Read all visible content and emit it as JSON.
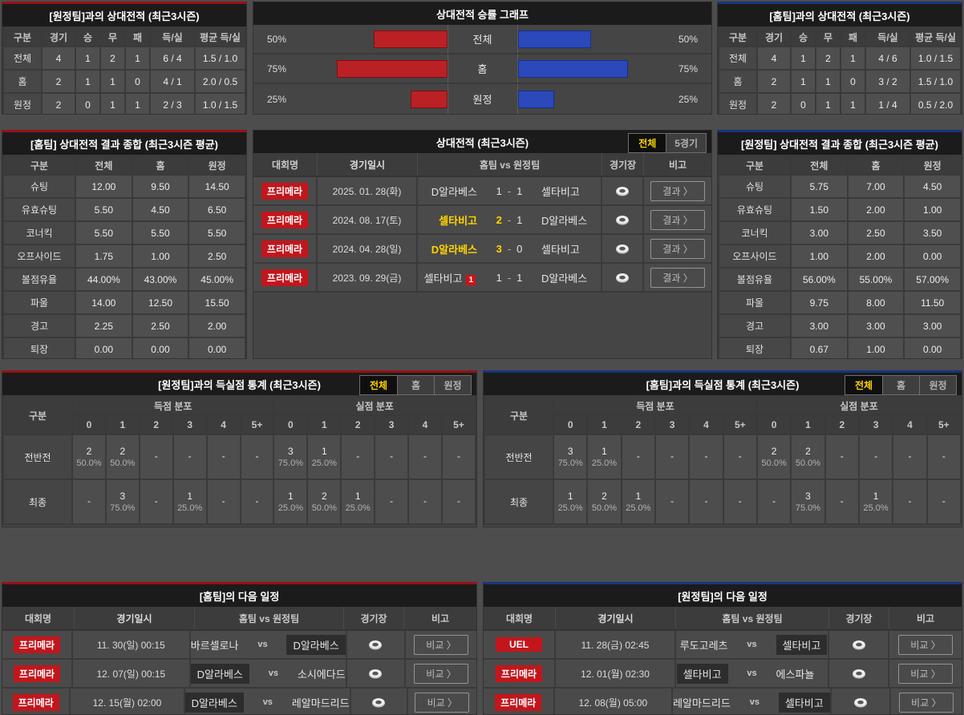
{
  "chart_data": {
    "type": "bar",
    "title": "상대전적 승률 그래프",
    "orientation": "horizontal-mirrored",
    "categories": [
      "전체",
      "홈",
      "원정"
    ],
    "series": [
      {
        "name": "red-left",
        "color": "#bb2025",
        "values": [
          50,
          75,
          25
        ]
      },
      {
        "name": "blue-right",
        "color": "#2b49bb",
        "values": [
          50,
          75,
          25
        ]
      }
    ],
    "value_labels": [
      "50%",
      "75%",
      "25%"
    ],
    "xlim": [
      0,
      100
    ]
  },
  "labels": {
    "vs": "vs",
    "score_sep": "-",
    "result_button": "결과 〉",
    "compare_button": "비교 〉"
  },
  "colors": {
    "red_accent": "#971116",
    "blue_accent": "#17357e",
    "badge_red": "#c2161c",
    "bar_red": "#bb2025",
    "bar_blue": "#2b49bb",
    "winner_yellow": "#ffd400"
  },
  "h2h_vs_away": {
    "title": "[원정팀]과의 상대전적 (최근3시즌)",
    "headers": [
      "구분",
      "경기",
      "승",
      "무",
      "패",
      "득/실",
      "평균 득/실"
    ],
    "rows": [
      [
        "전체",
        "4",
        "1",
        "2",
        "1",
        "6 / 4",
        "1.5 / 1.0"
      ],
      [
        "홈",
        "2",
        "1",
        "1",
        "0",
        "4 / 1",
        "2.0 / 0.5"
      ],
      [
        "원정",
        "2",
        "0",
        "1",
        "1",
        "2 / 3",
        "1.0 / 1.5"
      ]
    ]
  },
  "h2h_vs_home": {
    "title": "[홈팀]과의 상대전적 (최근3시즌)",
    "headers": [
      "구분",
      "경기",
      "승",
      "무",
      "패",
      "득/실",
      "평균 득/실"
    ],
    "rows": [
      [
        "전체",
        "4",
        "1",
        "2",
        "1",
        "4 / 6",
        "1.0 / 1.5"
      ],
      [
        "홈",
        "2",
        "1",
        "1",
        "0",
        "3 / 2",
        "1.5 / 1.0"
      ],
      [
        "원정",
        "2",
        "0",
        "1",
        "1",
        "1 / 4",
        "0.5 / 2.0"
      ]
    ]
  },
  "home_summary": {
    "title": "[홈팀] 상대전적 결과 종합 (최근3시즌 평균)",
    "headers": [
      "구분",
      "전체",
      "홈",
      "원정"
    ],
    "rows": [
      [
        "슈팅",
        "12.00",
        "9.50",
        "14.50"
      ],
      [
        "유효슈팅",
        "5.50",
        "4.50",
        "6.50"
      ],
      [
        "코너킥",
        "5.50",
        "5.50",
        "5.50"
      ],
      [
        "오프사이드",
        "1.75",
        "1.00",
        "2.50"
      ],
      [
        "볼점유율",
        "44.00%",
        "43.00%",
        "45.00%"
      ],
      [
        "파울",
        "14.00",
        "12.50",
        "15.50"
      ],
      [
        "경고",
        "2.25",
        "2.50",
        "2.00"
      ],
      [
        "퇴장",
        "0.00",
        "0.00",
        "0.00"
      ]
    ]
  },
  "away_summary": {
    "title": "[원정팀] 상대전적 결과 종합 (최근3시즌 평균)",
    "headers": [
      "구분",
      "전체",
      "홈",
      "원정"
    ],
    "rows": [
      [
        "슈팅",
        "5.75",
        "7.00",
        "4.50"
      ],
      [
        "유효슈팅",
        "1.50",
        "2.00",
        "1.00"
      ],
      [
        "코너킥",
        "3.00",
        "2.50",
        "3.50"
      ],
      [
        "오프사이드",
        "1.00",
        "2.00",
        "0.00"
      ],
      [
        "볼점유율",
        "56.00%",
        "55.00%",
        "57.00%"
      ],
      [
        "파울",
        "9.75",
        "8.00",
        "11.50"
      ],
      [
        "경고",
        "3.00",
        "3.00",
        "3.00"
      ],
      [
        "퇴장",
        "0.67",
        "1.00",
        "0.00"
      ]
    ]
  },
  "h2h_matches": {
    "title": "상대전적 (최근3시즌)",
    "tabs": [
      {
        "label": "전체",
        "active": true
      },
      {
        "label": "5경기",
        "active": false
      }
    ],
    "headers": {
      "league": "대회명",
      "datetime": "경기일시",
      "teams": "홈팀 vs 원정팀",
      "stadium": "경기장",
      "note": "비고"
    },
    "rows": [
      {
        "league": "프리메라",
        "date": "2025. 01. 28(화)",
        "home": "D알라베스",
        "home_score": "1",
        "away_score": "1",
        "away": "셀타비고",
        "winner": "draw"
      },
      {
        "league": "프리메라",
        "date": "2024. 08. 17(토)",
        "home": "셀타비고",
        "home_score": "2",
        "away_score": "1",
        "away": "D알라베스",
        "winner": "home"
      },
      {
        "league": "프리메라",
        "date": "2024. 04. 28(일)",
        "home": "D알라베스",
        "home_score": "3",
        "away_score": "0",
        "away": "셀타비고",
        "winner": "home"
      },
      {
        "league": "프리메라",
        "date": "2023. 09. 29(금)",
        "home": "셀타비고",
        "home_redcards": "1",
        "home_score": "1",
        "away_score": "1",
        "away": "D알라베스",
        "winner": "draw"
      }
    ]
  },
  "goals_vs_away": {
    "title": "[원정팀]과의 득실점 통계 (최근3시즌)",
    "tabs": [
      {
        "label": "전체",
        "active": true
      },
      {
        "label": "홈",
        "active": false
      },
      {
        "label": "원정",
        "active": false
      }
    ],
    "col_label": "구분",
    "group_headers": [
      "득점 분포",
      "실점 분포"
    ],
    "score_cols": [
      "0",
      "1",
      "2",
      "3",
      "4",
      "5+"
    ],
    "rows": [
      {
        "label": "전반전",
        "scored": [
          [
            "2",
            "50.0%"
          ],
          [
            "2",
            "50.0%"
          ],
          [
            "-",
            ""
          ],
          [
            "-",
            ""
          ],
          [
            "-",
            ""
          ],
          [
            "-",
            ""
          ]
        ],
        "conceded": [
          [
            "3",
            "75.0%"
          ],
          [
            "1",
            "25.0%"
          ],
          [
            "-",
            ""
          ],
          [
            "-",
            ""
          ],
          [
            "-",
            ""
          ],
          [
            "-",
            ""
          ]
        ]
      },
      {
        "label": "최종",
        "scored": [
          [
            "-",
            ""
          ],
          [
            "3",
            "75.0%"
          ],
          [
            "-",
            ""
          ],
          [
            "1",
            "25.0%"
          ],
          [
            "-",
            ""
          ],
          [
            "-",
            ""
          ]
        ],
        "conceded": [
          [
            "1",
            "25.0%"
          ],
          [
            "2",
            "50.0%"
          ],
          [
            "1",
            "25.0%"
          ],
          [
            "-",
            ""
          ],
          [
            "-",
            ""
          ],
          [
            "-",
            ""
          ]
        ]
      }
    ]
  },
  "goals_vs_home": {
    "title": "[홈팀]과의 득실점 통계 (최근3시즌)",
    "tabs": [
      {
        "label": "전체",
        "active": true
      },
      {
        "label": "홈",
        "active": false
      },
      {
        "label": "원정",
        "active": false
      }
    ],
    "col_label": "구분",
    "group_headers": [
      "득점 분포",
      "실점 분포"
    ],
    "score_cols": [
      "0",
      "1",
      "2",
      "3",
      "4",
      "5+"
    ],
    "rows": [
      {
        "label": "전반전",
        "scored": [
          [
            "3",
            "75.0%"
          ],
          [
            "1",
            "25.0%"
          ],
          [
            "-",
            ""
          ],
          [
            "-",
            ""
          ],
          [
            "-",
            ""
          ],
          [
            "-",
            ""
          ]
        ],
        "conceded": [
          [
            "2",
            "50.0%"
          ],
          [
            "2",
            "50.0%"
          ],
          [
            "-",
            ""
          ],
          [
            "-",
            ""
          ],
          [
            "-",
            ""
          ],
          [
            "-",
            ""
          ]
        ]
      },
      {
        "label": "최종",
        "scored": [
          [
            "1",
            "25.0%"
          ],
          [
            "2",
            "50.0%"
          ],
          [
            "1",
            "25.0%"
          ],
          [
            "-",
            ""
          ],
          [
            "-",
            ""
          ],
          [
            "-",
            ""
          ]
        ],
        "conceded": [
          [
            "-",
            ""
          ],
          [
            "3",
            "75.0%"
          ],
          [
            "-",
            ""
          ],
          [
            "1",
            "25.0%"
          ],
          [
            "-",
            ""
          ],
          [
            "-",
            ""
          ]
        ]
      }
    ]
  },
  "schedule_home": {
    "title": "[홈팀]의 다음 일정",
    "headers": {
      "league": "대회명",
      "datetime": "경기일시",
      "teams": "홈팀 vs 원정팀",
      "stadium": "경기장",
      "note": "비고"
    },
    "rows": [
      {
        "league": "프리메라",
        "date": "11. 30(일) 00:15",
        "home": "바르셀로나",
        "away": "D알라베스",
        "highlight": "away"
      },
      {
        "league": "프리메라",
        "date": "12. 07(일) 00:15",
        "home": "D알라베스",
        "away": "소시에다드",
        "highlight": "home"
      },
      {
        "league": "프리메라",
        "date": "12. 15(월) 02:00",
        "home": "D알라베스",
        "away": "레알마드리드",
        "highlight": "home"
      }
    ]
  },
  "schedule_away": {
    "title": "[원정팀]의 다음 일정",
    "headers": {
      "league": "대회명",
      "datetime": "경기일시",
      "teams": "홈팀 vs 원정팀",
      "stadium": "경기장",
      "note": "비고"
    },
    "rows": [
      {
        "league": "UEL",
        "date": "11. 28(금) 02:45",
        "home": "루도고레츠",
        "away": "셀타비고",
        "highlight": "away"
      },
      {
        "league": "프리메라",
        "date": "12. 01(월) 02:30",
        "home": "셀타비고",
        "away": "에스파뇰",
        "highlight": "home"
      },
      {
        "league": "프리메라",
        "date": "12. 08(월) 05:00",
        "home": "레알마드리드",
        "away": "셀타비고",
        "highlight": "away"
      }
    ]
  }
}
